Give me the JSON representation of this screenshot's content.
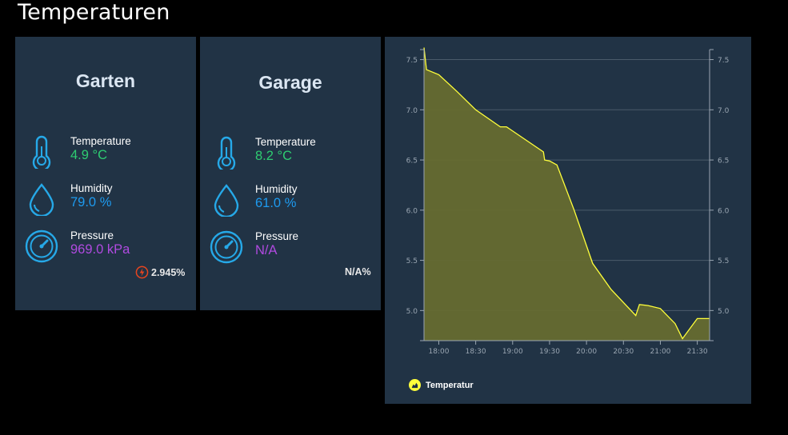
{
  "page": {
    "title": "Temperaturen"
  },
  "colors": {
    "background": "#000000",
    "card": "#213345",
    "title_text": "#dbe6f2",
    "temperature": "#2ecc71",
    "humidity": "#1e9bf0",
    "pressure": "#b04ae0",
    "icon": "#26a9e8",
    "battery_icon": "#e8451f",
    "chart_line": "#ffff3b",
    "chart_fill": "#666b30"
  },
  "cards": [
    {
      "title": "Garten",
      "temperature_label": "Temperature",
      "temperature_value": "4.9 °C",
      "humidity_label": "Humidity",
      "humidity_value": "79.0 %",
      "pressure_label": "Pressure",
      "pressure_value": "969.0 kPa",
      "battery": "2.945%",
      "battery_icon": "lightning-icon"
    },
    {
      "title": "Garage",
      "temperature_label": "Temperature",
      "temperature_value": "8.2 °C",
      "humidity_label": "Humidity",
      "humidity_value": "61.0 %",
      "pressure_label": "Pressure",
      "pressure_value": "N/A",
      "battery": "N/A%"
    }
  ],
  "chart_data": {
    "type": "area",
    "legend_position": "bottom-left",
    "grid": true,
    "x_tick_labels": [
      "18:00",
      "18:30",
      "19:00",
      "19:30",
      "20:00",
      "20:30",
      "21:00",
      "21:30"
    ],
    "y_tick_labels": [
      "5.0",
      "5.5",
      "6.0",
      "6.5",
      "7.0",
      "7.5"
    ],
    "ylim": [
      4.7,
      7.6
    ],
    "xlim": [
      "17:48",
      "21:40"
    ],
    "series": [
      {
        "name": "Temperatur",
        "x": [
          "17:48",
          "17:50",
          "18:00",
          "18:15",
          "18:30",
          "18:50",
          "18:55",
          "19:25",
          "19:26",
          "19:30",
          "19:36",
          "19:50",
          "20:05",
          "20:20",
          "20:40",
          "20:43",
          "20:50",
          "21:00",
          "21:12",
          "21:18",
          "21:30",
          "21:40"
        ],
        "values": [
          7.62,
          7.4,
          7.35,
          7.18,
          7.0,
          6.83,
          6.83,
          6.58,
          6.5,
          6.49,
          6.45,
          6.0,
          5.47,
          5.21,
          4.95,
          5.06,
          5.05,
          5.02,
          4.87,
          4.72,
          4.92,
          4.92
        ]
      }
    ]
  }
}
